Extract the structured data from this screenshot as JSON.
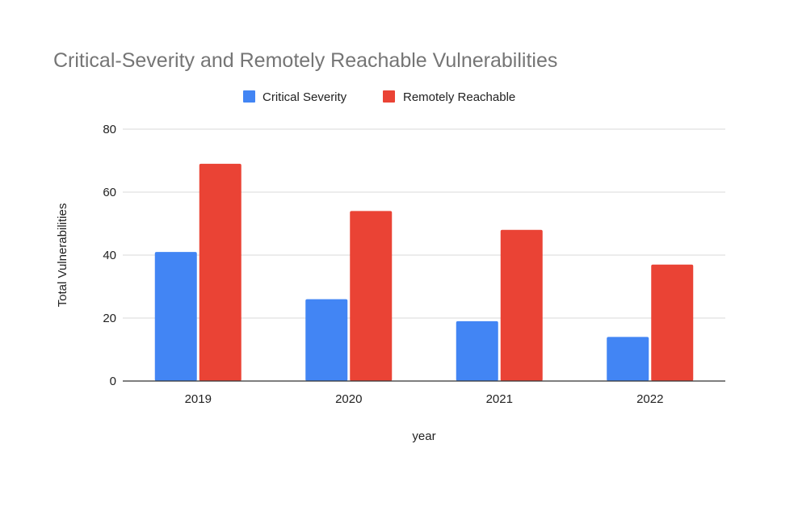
{
  "chart_data": {
    "type": "bar",
    "title": "Critical-Severity and Remotely Reachable Vulnerabilities",
    "xlabel": "year",
    "ylabel": "Total Vulnerabilities",
    "categories": [
      "2019",
      "2020",
      "2021",
      "2022"
    ],
    "series": [
      {
        "name": "Critical Severity",
        "color": "#4285F4",
        "values": [
          41,
          26,
          19,
          14
        ]
      },
      {
        "name": "Remotely Reachable",
        "color": "#EA4335",
        "values": [
          69,
          54,
          48,
          37
        ]
      }
    ],
    "ylim": [
      0,
      80
    ],
    "yticks": [
      "0",
      "20",
      "40",
      "60",
      "80"
    ],
    "grid": true,
    "legend_position": "top"
  }
}
